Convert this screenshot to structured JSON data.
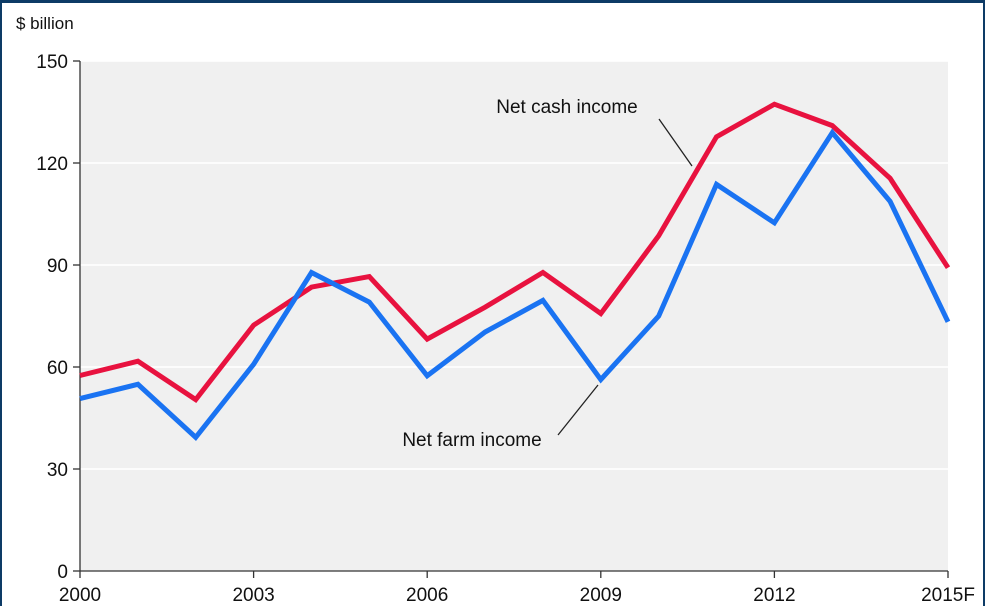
{
  "chart_data": {
    "type": "line",
    "title": "",
    "ylabel": "$ billion",
    "xlabel": "",
    "x": [
      2000,
      2001,
      2002,
      2003,
      2004,
      2005,
      2006,
      2007,
      2008,
      2009,
      2010,
      2011,
      2012,
      2013,
      2014,
      2015
    ],
    "xticks": [
      2000,
      2003,
      2006,
      2009,
      2012,
      2015
    ],
    "xtick_labels": [
      "2000",
      "2003",
      "2006",
      "2009",
      "2012",
      "2015F"
    ],
    "xlim": [
      2000,
      2015
    ],
    "ylim": [
      0,
      150
    ],
    "yticks": [
      0,
      30,
      60,
      90,
      120,
      150
    ],
    "ytick_labels": [
      "0",
      "30",
      "60",
      "90",
      "120",
      "150"
    ],
    "grid": "horizontal",
    "plot_background": "#f0f0f0",
    "series": [
      {
        "name": "Net cash income",
        "color": "#e8123f",
        "values": [
          57.5,
          61.7,
          50.4,
          72.3,
          83.5,
          86.6,
          68.2,
          77.6,
          87.8,
          75.7,
          98.6,
          127.7,
          137.3,
          131.0,
          115.5,
          89.2
        ]
      },
      {
        "name": "Net farm income",
        "color": "#1a73f2",
        "values": [
          50.7,
          54.9,
          39.3,
          60.8,
          87.8,
          79.1,
          57.4,
          70.3,
          79.6,
          56.3,
          75.0,
          113.7,
          102.4,
          128.9,
          108.7,
          73.3
        ]
      }
    ],
    "annotations": [
      {
        "text": "Net cash income",
        "series": "Net cash income",
        "at_x": 2010.5
      },
      {
        "text": "Net farm income",
        "series": "Net farm income",
        "at_x": 2009.0
      }
    ]
  }
}
